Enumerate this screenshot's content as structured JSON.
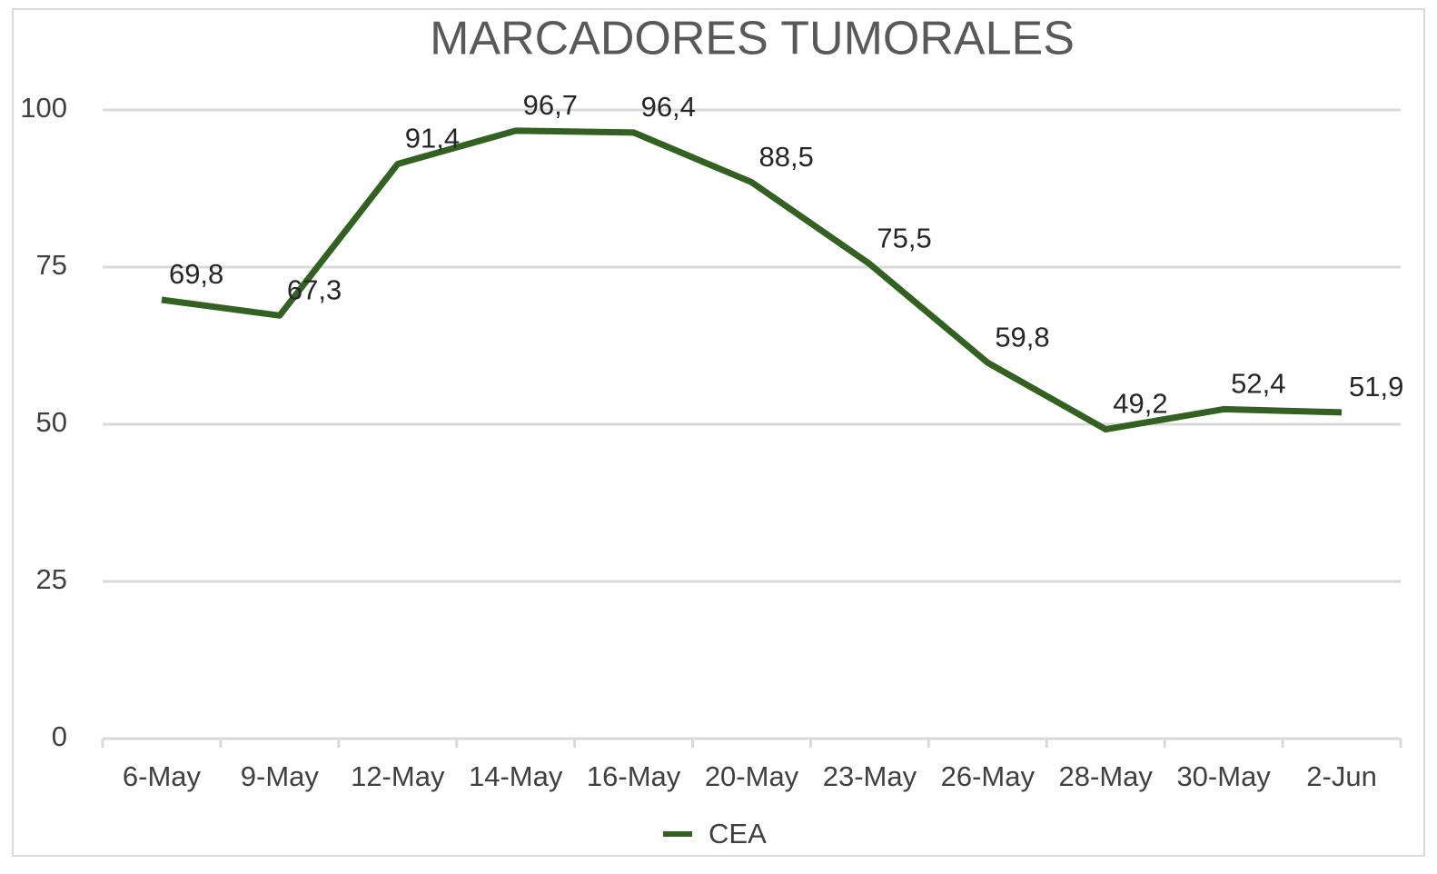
{
  "chart_data": {
    "type": "line",
    "title": "MARCADORES TUMORALES",
    "categories": [
      "6-May",
      "9-May",
      "12-May",
      "14-May",
      "16-May",
      "20-May",
      "23-May",
      "26-May",
      "28-May",
      "30-May",
      "2-Jun"
    ],
    "series": [
      {
        "name": "CEA",
        "color": "#336122",
        "values": [
          69.8,
          67.3,
          91.4,
          96.7,
          96.4,
          88.5,
          75.5,
          59.8,
          49.2,
          52.4,
          51.9
        ],
        "value_labels": [
          "69,8",
          "67,3",
          "91,4",
          "96,7",
          "96,4",
          "88,5",
          "75,5",
          "59,8",
          "49,2",
          "52,4",
          "51,9"
        ]
      }
    ],
    "ylim": [
      0,
      100
    ],
    "yticks": [
      0,
      25,
      50,
      75,
      100
    ],
    "grid": true,
    "legend": "bottom"
  }
}
